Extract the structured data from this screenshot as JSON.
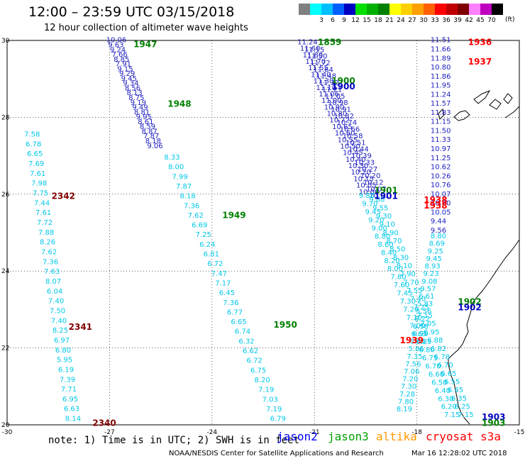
{
  "header": {
    "title": "12:00 – 23:59 UTC 03/15/2018",
    "subtitle": "12 hour collection of altimeter wave heights"
  },
  "scale": {
    "unit": "(ft)",
    "bins": [
      {
        "label": "",
        "color": "#808080"
      },
      {
        "label": "3",
        "color": "#00ffff"
      },
      {
        "label": "6",
        "color": "#00bfff"
      },
      {
        "label": "9",
        "color": "#0060ff"
      },
      {
        "label": "12",
        "color": "#0000c0"
      },
      {
        "label": "15",
        "color": "#00e000"
      },
      {
        "label": "18",
        "color": "#00b000"
      },
      {
        "label": "21",
        "color": "#008000"
      },
      {
        "label": "24",
        "color": "#ffff00"
      },
      {
        "label": "27",
        "color": "#ffd000"
      },
      {
        "label": "30",
        "color": "#ffa000"
      },
      {
        "label": "33",
        "color": "#ff6000"
      },
      {
        "label": "36",
        "color": "#ff0000"
      },
      {
        "label": "39",
        "color": "#c00000"
      },
      {
        "label": "42",
        "color": "#800000"
      },
      {
        "label": "45",
        "color": "#ff80ff"
      },
      {
        "label": "70",
        "color": "#c000c0"
      },
      {
        "label": "",
        "color": "#000000"
      }
    ]
  },
  "axes": {
    "lon_ticks": [
      "-30",
      "-27",
      "-24",
      "-21",
      "-18",
      "-15"
    ],
    "lat_ticks": [
      "30",
      "28",
      "26",
      "24",
      "22",
      "20"
    ]
  },
  "tracks": [
    {
      "color": "#00c8e8",
      "lat_start": 27.5,
      "lat_end": 20.1,
      "lon_start": -29.5,
      "lon_end": -28.3,
      "values": [
        "7.58",
        "6.78",
        "6.65",
        "7.69",
        "7.61",
        "7.98",
        "7.75",
        "7.44",
        "7.61",
        "7.72",
        "7.88",
        "8.26",
        "7.62",
        "7.36",
        "7.63",
        "8.07",
        "6.04",
        "7.40",
        "7.50",
        "7.40",
        "8.25",
        "6.97",
        "6.80",
        "5.95",
        "6.19",
        "7.39",
        "7.71",
        "6.95",
        "6.63",
        "8.14"
      ]
    },
    {
      "color": "#2020c0",
      "lat_start": 29.95,
      "lat_end": 27.2,
      "lon_start": -27.1,
      "lon_end": -25.9,
      "values": [
        "10.06",
        "9.63",
        "9.24",
        "7.66",
        "8.85",
        "7.91",
        "9.15",
        "9.29",
        "9.45",
        "9.34",
        "8.56",
        "8.13",
        "8.75",
        "9.19",
        "9.49",
        "8.81",
        "9.95",
        "8.61",
        "8.59",
        "8.87",
        "7.87",
        "8.18",
        "9.06"
      ]
    },
    {
      "color": "#00c8e8",
      "lat_start": 26.9,
      "lat_end": 20.1,
      "lon_start": -25.4,
      "lon_end": -22.3,
      "values": [
        "8.33",
        "8.00",
        "7.99",
        "7.87",
        "8.18",
        "7.36",
        "7.62",
        "6.69",
        "7.25",
        "6.24",
        "6.81",
        "6.72",
        "7.47",
        "7.17",
        "6.45",
        "7.36",
        "6.77",
        "6.65",
        "6.74",
        "6.32",
        "6.62",
        "6.72",
        "6.75",
        "8.20",
        "7.19",
        "7.03",
        "7.19",
        "6.79"
      ]
    },
    {
      "color": "#2020c0",
      "lat_start": 29.9,
      "lat_end": 26.0,
      "lon_start": -21.5,
      "lon_end": -19.7,
      "values": [
        "11.24",
        "11.60",
        "11.80",
        "11.70",
        "11.55",
        "11.40",
        "11.30",
        "11.10",
        "11.06",
        "11.00",
        "10.90",
        "10.80",
        "10.72",
        "10.65",
        "10.60",
        "10.55",
        "10.50",
        "10.45",
        "10.40",
        "10.30",
        "10.20",
        "10.15",
        "10.05",
        "10.00"
      ]
    },
    {
      "color": "#2020c0",
      "lat_start": 29.7,
      "lat_end": 25.9,
      "lon_start": -21.3,
      "lon_end": -19.4,
      "values": [
        "11.15",
        "11.50",
        "11.72",
        "11.64",
        "11.48",
        "11.32",
        "11.21",
        "11.05",
        "10.98",
        "10.91",
        "10.82",
        "10.74",
        "10.66",
        "10.58",
        "10.51",
        "10.44",
        "10.39",
        "10.33",
        "10.27",
        "10.20",
        "10.12",
        "10.07",
        "10.01"
      ]
    },
    {
      "color": "#00c8e8",
      "lat_start": 25.9,
      "lat_end": 20.2,
      "lon_start": -19.7,
      "lon_end": -17.2,
      "values": [
        "9.88",
        "9.70",
        "9.45",
        "9.20",
        "9.00",
        "8.80",
        "8.60",
        "8.40",
        "8.20",
        "8.00",
        "7.80",
        "7.60",
        "7.45",
        "7.30",
        "7.20",
        "7.10",
        "7.00",
        "6.90",
        "6.85",
        "6.80",
        "6.75",
        "6.70",
        "6.60",
        "6.50",
        "6.40",
        "6.30",
        "6.20",
        "7.15"
      ]
    },
    {
      "color": "#00c8e8",
      "lat_start": 25.8,
      "lat_end": 20.2,
      "lon_start": -19.4,
      "lon_end": -16.8,
      "values": [
        "9.80",
        "9.55",
        "9.30",
        "9.10",
        "8.90",
        "8.70",
        "8.50",
        "8.30",
        "8.10",
        "7.90",
        "7.70",
        "7.55",
        "7.40",
        "7.25",
        "7.15",
        "7.05",
        "6.95",
        "6.88",
        "6.82",
        "6.78",
        "6.70",
        "6.65",
        "6.55",
        "6.45",
        "6.35",
        "6.25",
        "7.15"
      ]
    },
    {
      "color": "#2020c0",
      "lat_start": 29.95,
      "lat_end": 25.0,
      "lon_start": -17.6,
      "lon_end": -17.6,
      "values": [
        "11.51",
        "11.66",
        "11.89",
        "10.80",
        "11.86",
        "11.95",
        "11.24",
        "11.57",
        "11.83",
        "11.15",
        "11.50",
        "11.33",
        "10.97",
        "11.25",
        "10.62",
        "10.26",
        "10.76",
        "10.07",
        "10.70",
        "10.05",
        "9.44",
        "9.56"
      ]
    },
    {
      "color": "#00c8e8",
      "lat_start": 24.85,
      "lat_end": 20.35,
      "lon_start": -17.6,
      "lon_end": -18.6,
      "values": [
        "8.80",
        "8.69",
        "9.25",
        "9.45",
        "8.93",
        "9.23",
        "9.08",
        "9.57",
        "6.61",
        "5.83",
        "5.56",
        "6.22",
        "6.58",
        "6.63",
        "6.65",
        "5.86",
        "7.35",
        "7.56",
        "7.06",
        "7.20",
        "7.30",
        "7.28",
        "7.80",
        "8.19"
      ]
    }
  ],
  "time_labels": [
    {
      "text": "2342",
      "color": "#800000",
      "lon": -28.7,
      "lat": 25.95
    },
    {
      "text": "2341",
      "color": "#800000",
      "lon": -28.2,
      "lat": 22.55
    },
    {
      "text": "2340",
      "color": "#800000",
      "lon": -27.5,
      "lat": 20.05
    },
    {
      "text": "1947",
      "color": "#008000",
      "lon": -26.3,
      "lat": 29.9
    },
    {
      "text": "1948",
      "color": "#008000",
      "lon": -25.3,
      "lat": 28.35
    },
    {
      "text": "1949",
      "color": "#008000",
      "lon": -23.7,
      "lat": 25.45
    },
    {
      "text": "1950",
      "color": "#008000",
      "lon": -22.2,
      "lat": 22.6
    },
    {
      "text": "1859",
      "color": "#008000",
      "lon": -20.9,
      "lat": 29.95
    },
    {
      "text": "1900",
      "color": "#008000",
      "lon": -20.5,
      "lat": 28.95
    },
    {
      "text": "1900",
      "color": "#0000c0",
      "lon": -20.5,
      "lat": 28.8
    },
    {
      "text": "1901",
      "color": "#008000",
      "lon": -19.25,
      "lat": 26.1
    },
    {
      "text": "1901",
      "color": "#0000c0",
      "lon": -19.25,
      "lat": 25.95
    },
    {
      "text": "1902",
      "color": "#008000",
      "lon": -16.8,
      "lat": 23.2
    },
    {
      "text": "1902",
      "color": "#0000c0",
      "lon": -16.8,
      "lat": 23.05
    },
    {
      "text": "1903",
      "color": "#0000c0",
      "lon": -16.1,
      "lat": 20.2
    },
    {
      "text": "1903",
      "color": "#008000",
      "lon": -16.1,
      "lat": 20.05
    },
    {
      "text": "1936",
      "color": "#ff0000",
      "lon": -16.5,
      "lat": 29.95
    },
    {
      "text": "1937",
      "color": "#ff0000",
      "lon": -16.5,
      "lat": 29.45
    },
    {
      "text": "1938",
      "color": "#ff0000",
      "lon": -17.8,
      "lat": 25.85
    },
    {
      "text": "1938",
      "color": "#ff0000",
      "lon": -17.8,
      "lat": 25.7
    },
    {
      "text": "1939",
      "color": "#ff0000",
      "lon": -18.5,
      "lat": 22.2
    }
  ],
  "legend": {
    "note": "note: 1) Time is in UTC; 2) SWH is in feet",
    "jason2": {
      "text": "jason2",
      "color": "#0000ff"
    },
    "jason3": {
      "text": "jason3",
      "color": "#00a000"
    },
    "altika": {
      "text": "altika",
      "color": "#ff9900"
    },
    "cryosat": {
      "text": "cryosat s3a",
      "color": "#ff0000"
    }
  },
  "credits": {
    "agency": "NOAA/NESDIS Center for Satellite Applications and Research",
    "timestamp": "Mar 16 12:28:02 UTC 2018"
  }
}
